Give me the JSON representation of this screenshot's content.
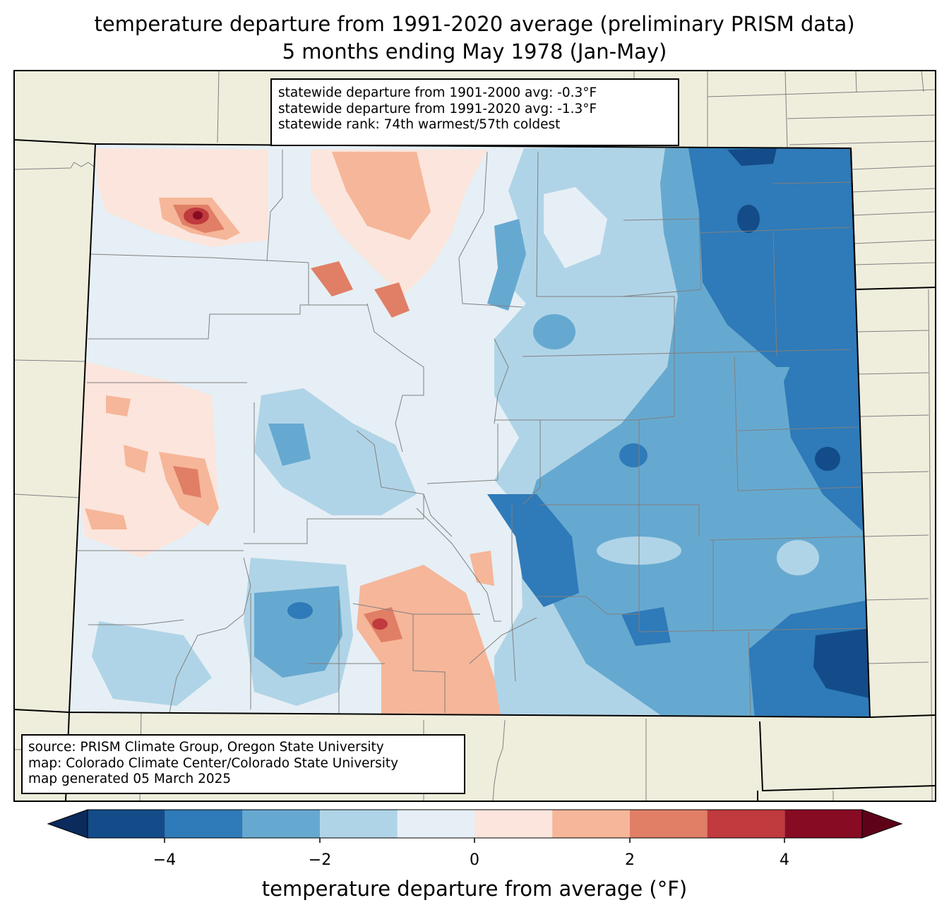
{
  "title": {
    "line1": "temperature departure from 1991-2020 average (preliminary PRISM data)",
    "line2": "5 months ending May 1978 (Jan-May)"
  },
  "stats": {
    "line1": "statewide departure from 1901-2000 avg: -0.3°F",
    "line2": "statewide departure from 1991-2020 avg: -1.3°F",
    "line3": "statewide rank: 74th warmest/57th coldest"
  },
  "source": {
    "line1": "source: PRISM Climate Group, Oregon State University",
    "line2": "map: Colorado Climate Center/Colorado State University",
    "line3": "map generated 05 March 2025"
  },
  "colorbar": {
    "label": "temperature departure from average (°F)",
    "ticks": [
      "−4",
      "−2",
      "0",
      "2",
      "4"
    ],
    "levels": [
      -5,
      -4,
      -3,
      -2,
      -1,
      0,
      1,
      2,
      3,
      4,
      5
    ],
    "colors": [
      "#134c89",
      "#2f7ab8",
      "#66a9d0",
      "#b0d4e7",
      "#e6eff5",
      "#fbe5dc",
      "#f6b699",
      "#e07f66",
      "#c03a3e",
      "#870b23"
    ],
    "under_color": "#0a2b5c",
    "over_color": "#5e0218"
  },
  "palette": {
    "land": "#efeedd",
    "boundary": "#000000",
    "county_line": "#808080"
  }
}
